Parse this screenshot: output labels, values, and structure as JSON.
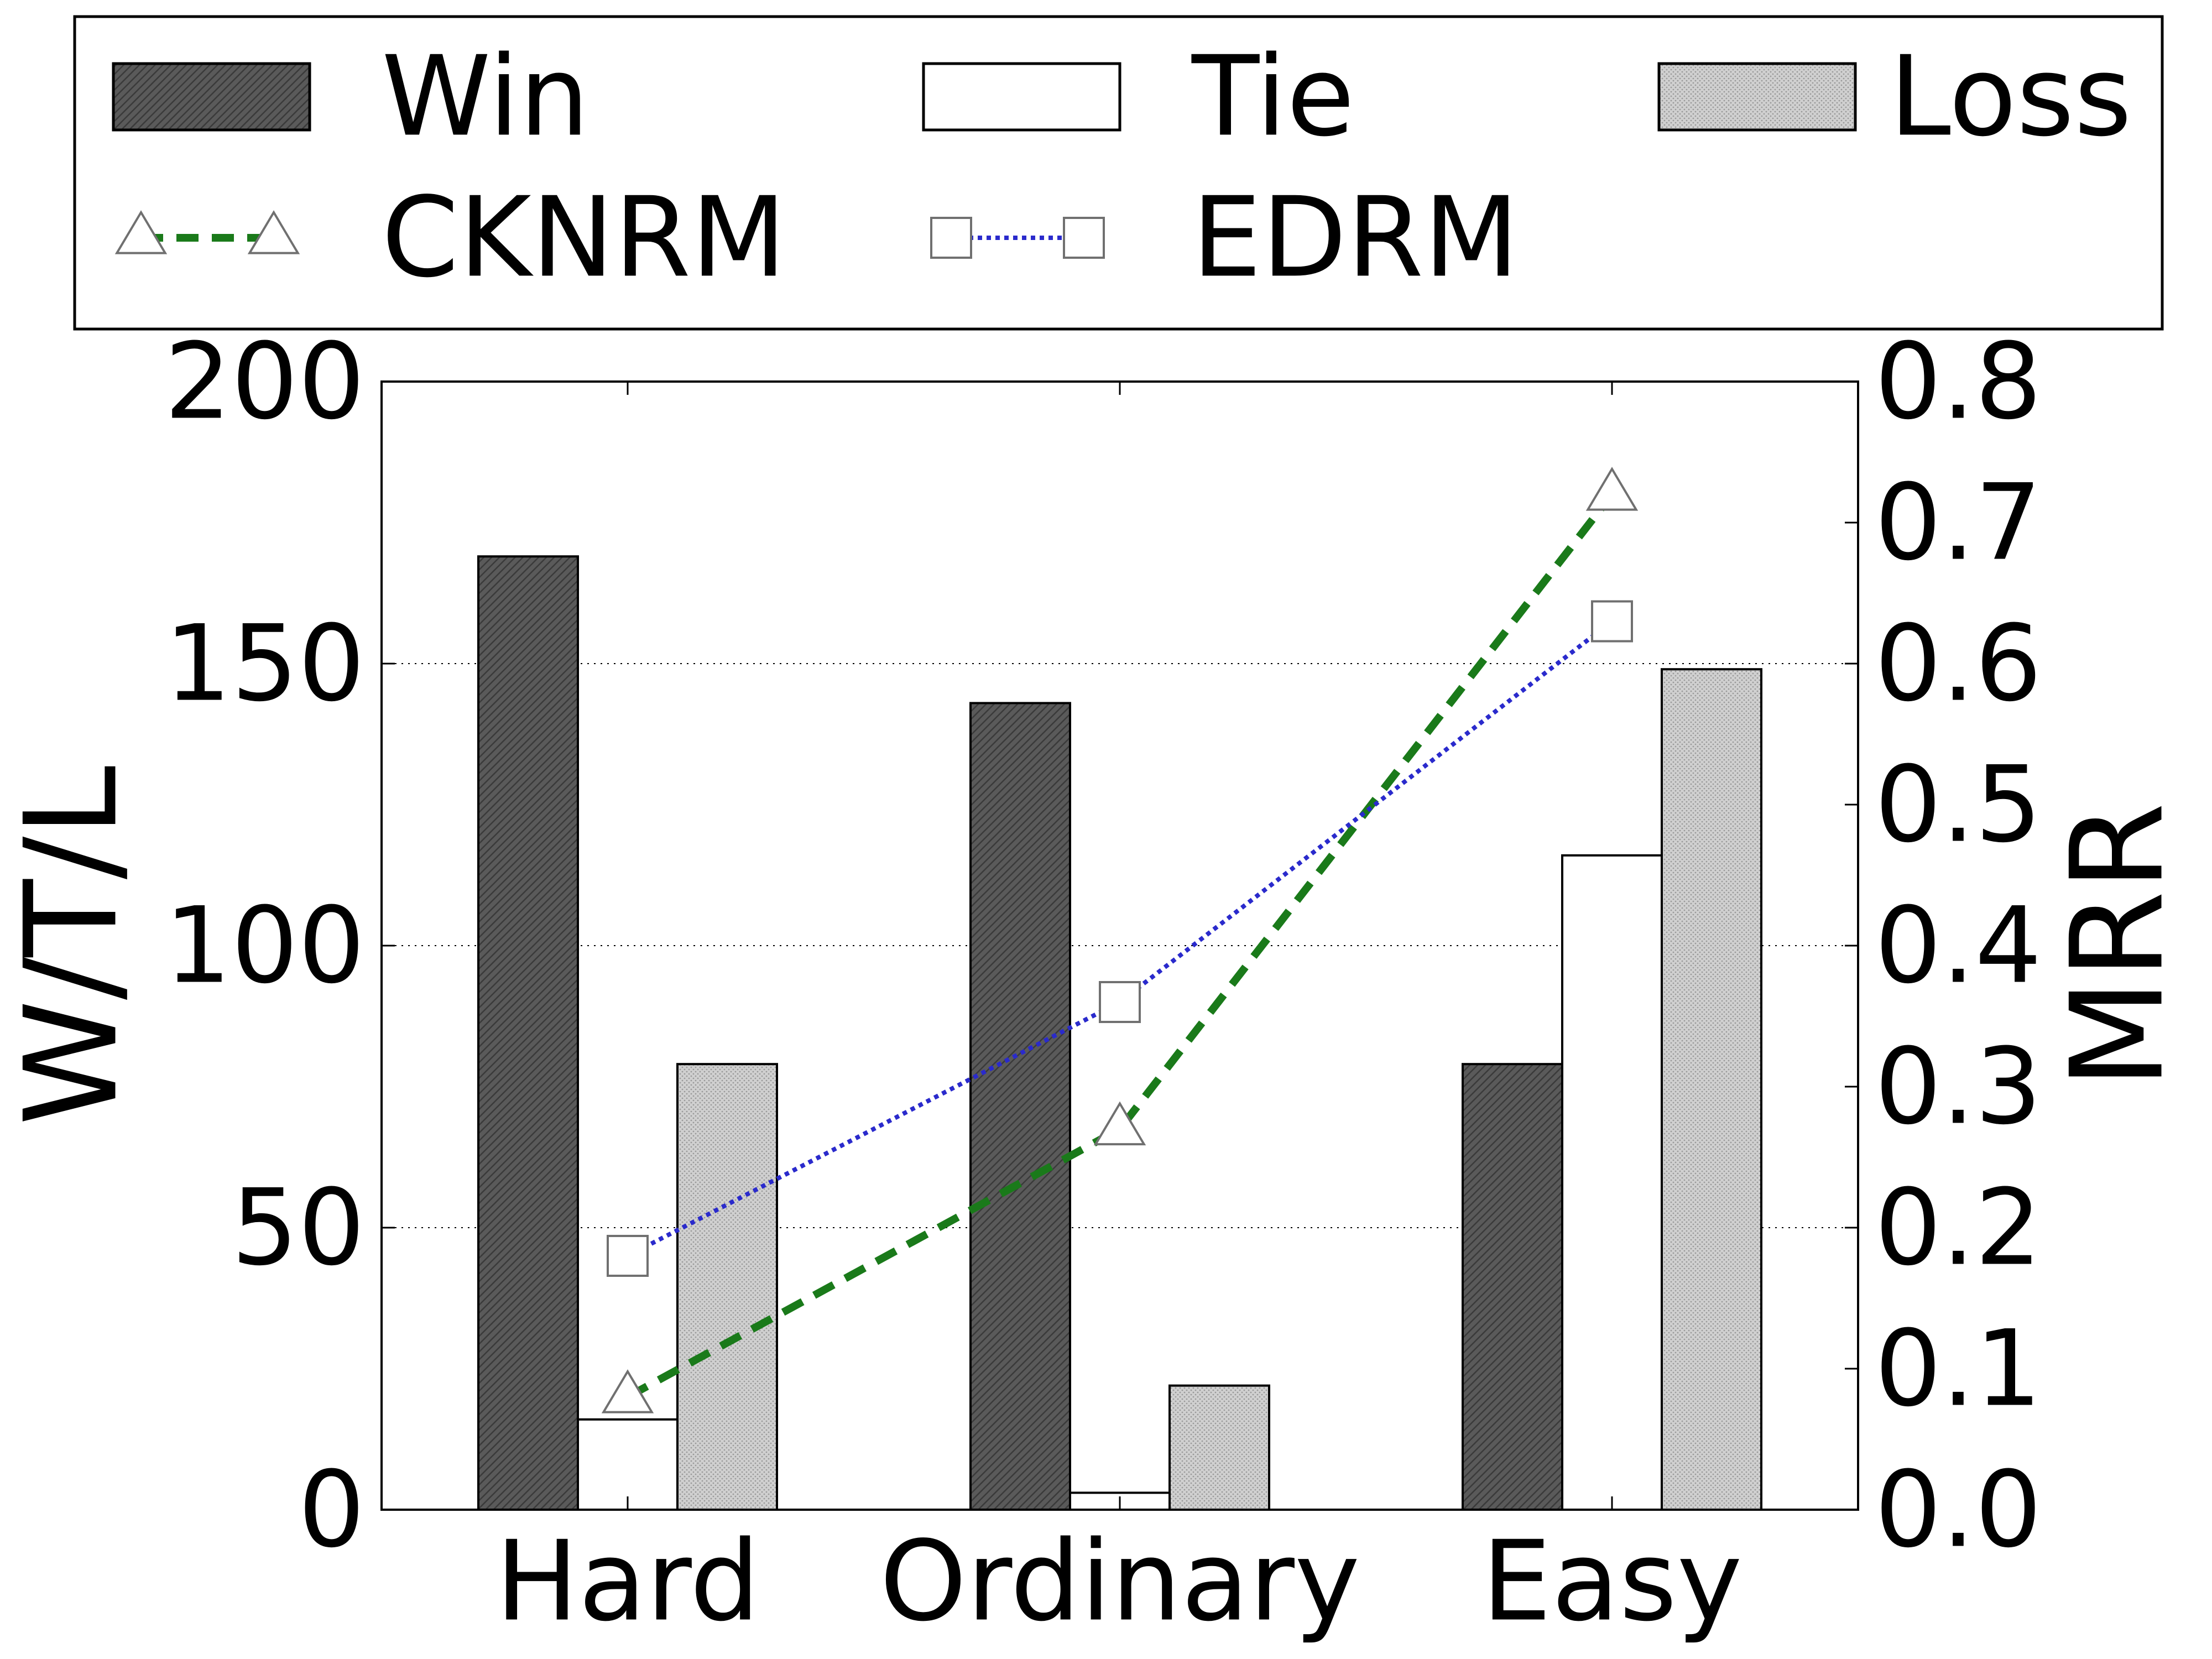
{
  "chart_data": {
    "type": "bar",
    "categories": [
      "Hard",
      "Ordinary",
      "Easy"
    ],
    "series": [
      {
        "name": "Win",
        "kind": "bar",
        "axis": "left",
        "values": [
          169,
          143,
          79
        ],
        "fill": "#5a5a5a",
        "pattern": "dense-hatch"
      },
      {
        "name": "Tie",
        "kind": "bar",
        "axis": "left",
        "values": [
          16,
          3,
          116
        ],
        "fill": "#ffffff",
        "pattern": "none"
      },
      {
        "name": "Loss",
        "kind": "bar",
        "axis": "left",
        "values": [
          79,
          22,
          149
        ],
        "fill": "#c8c8c8",
        "pattern": "light-dots"
      },
      {
        "name": "CKNRM",
        "kind": "line",
        "axis": "right",
        "values": [
          0.08,
          0.27,
          0.72
        ],
        "color": "#1a7a1a",
        "line_style": "dashed",
        "marker": "triangle"
      },
      {
        "name": "EDRM",
        "kind": "line",
        "axis": "right",
        "values": [
          0.18,
          0.36,
          0.63
        ],
        "color": "#2a2acc",
        "line_style": "dotted",
        "marker": "square"
      }
    ],
    "xlabel": "",
    "ylabel": "W/T/L",
    "ylim": [
      0,
      200
    ],
    "yticks": [
      0,
      50,
      100,
      150,
      200
    ],
    "y2label": "MRR",
    "y2lim": [
      0.0,
      0.8
    ],
    "y2ticks": [
      "0.0",
      "0.1",
      "0.2",
      "0.3",
      "0.4",
      "0.5",
      "0.6",
      "0.7",
      "0.8"
    ],
    "grid": "horizontal-dotted",
    "legend_position": "top",
    "legend_order": [
      "Win",
      "Tie",
      "Loss",
      "CKNRM",
      "EDRM"
    ]
  }
}
